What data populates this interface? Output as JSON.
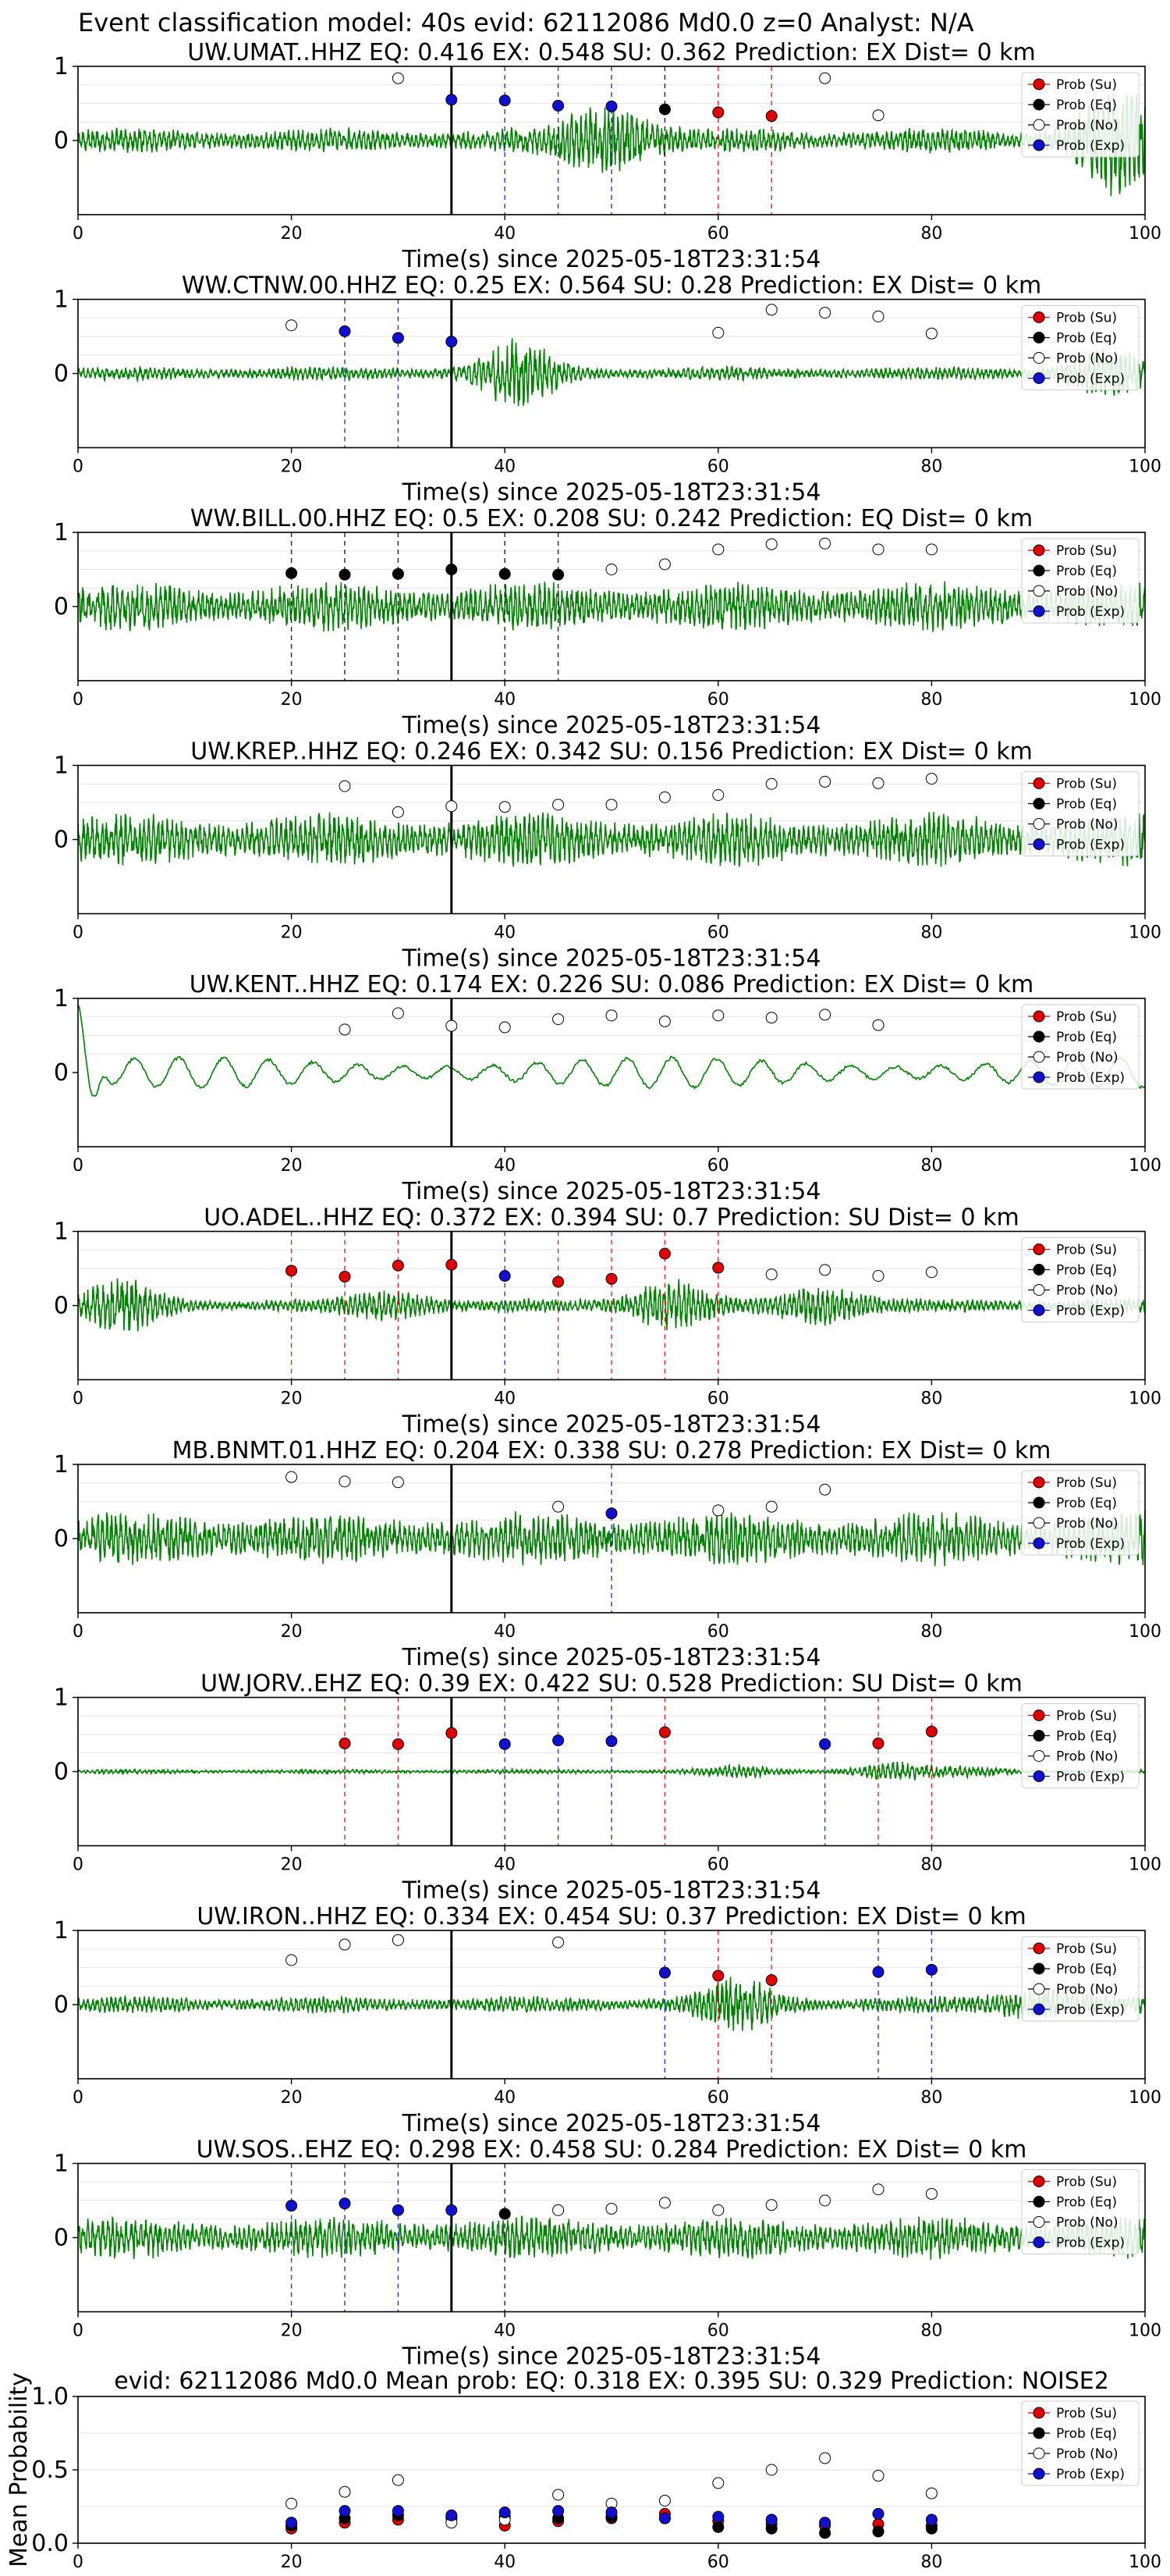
{
  "suptitle": "Event classification model: 40s evid: 62112086 Md0.0 z=0 Analyst: N/A",
  "xlabel": "Time(s) since 2025-05-18T23:31:54",
  "legend": [
    "Prob (Su)",
    "Prob (Eq)",
    "Prob (No)",
    "Prob (Exp)"
  ],
  "colors": {
    "su": "#e00000",
    "eq": "#000000",
    "no": "#ffffff",
    "exp": "#1010d0",
    "wave": "#008000",
    "pick": "#000000"
  },
  "chart_data": [
    {
      "type": "line",
      "title": "UW.UMAT..HHZ   EQ: 0.416  EX: 0.548  SU: 0.362   Prediction: EX    Dist= 0 km",
      "xlim": [
        0,
        100
      ],
      "ylim": [
        -1,
        1
      ],
      "yticks": [
        0,
        1
      ],
      "xticks": [
        0,
        20,
        40,
        60,
        80,
        100
      ],
      "pick_time": 35,
      "wave": {
        "amp": 0.18,
        "style": "noisy",
        "events": [
          {
            "t": 50,
            "g": 0.9
          },
          {
            "t": 97,
            "g": 0.9
          }
        ]
      },
      "points": [
        {
          "x": 30,
          "y": 0.84,
          "cls": "no"
        },
        {
          "x": 35,
          "y": 0.55,
          "cls": "exp"
        },
        {
          "x": 40,
          "y": 0.54,
          "cls": "exp"
        },
        {
          "x": 45,
          "y": 0.47,
          "cls": "exp"
        },
        {
          "x": 50,
          "y": 0.46,
          "cls": "exp"
        },
        {
          "x": 55,
          "y": 0.42,
          "cls": "eq"
        },
        {
          "x": 60,
          "y": 0.38,
          "cls": "su"
        },
        {
          "x": 65,
          "y": 0.33,
          "cls": "su"
        },
        {
          "x": 70,
          "y": 0.84,
          "cls": "no"
        },
        {
          "x": 75,
          "y": 0.34,
          "cls": "no"
        }
      ]
    },
    {
      "type": "line",
      "title": "WW.CTNW.00.HHZ   EQ: 0.25  EX: 0.564  SU: 0.28   Prediction: EX    Dist= 0 km",
      "xlim": [
        0,
        100
      ],
      "ylim": [
        -1,
        1
      ],
      "yticks": [
        0,
        1
      ],
      "xticks": [
        0,
        20,
        40,
        60,
        80,
        100
      ],
      "pick_time": 35,
      "wave": {
        "amp": 0.1,
        "style": "noisy",
        "events": [
          {
            "t": 41,
            "g": 1.0
          },
          {
            "t": 96,
            "g": 0.7
          }
        ]
      },
      "points": [
        {
          "x": 20,
          "y": 0.65,
          "cls": "no"
        },
        {
          "x": 25,
          "y": 0.57,
          "cls": "exp"
        },
        {
          "x": 30,
          "y": 0.48,
          "cls": "exp"
        },
        {
          "x": 35,
          "y": 0.43,
          "cls": "exp"
        },
        {
          "x": 60,
          "y": 0.55,
          "cls": "no"
        },
        {
          "x": 65,
          "y": 0.86,
          "cls": "no"
        },
        {
          "x": 70,
          "y": 0.82,
          "cls": "no"
        },
        {
          "x": 75,
          "y": 0.77,
          "cls": "no"
        },
        {
          "x": 80,
          "y": 0.54,
          "cls": "no"
        }
      ]
    },
    {
      "type": "line",
      "title": "WW.BILL.00.HHZ   EQ: 0.5  EX: 0.208  SU: 0.242   Prediction: EQ    Dist= 0 km",
      "xlim": [
        0,
        100
      ],
      "ylim": [
        -1,
        1
      ],
      "yticks": [
        0,
        1
      ],
      "xticks": [
        0,
        20,
        40,
        60,
        80,
        100
      ],
      "pick_time": 35,
      "wave": {
        "amp": 0.35,
        "style": "noisy",
        "events": []
      },
      "points": [
        {
          "x": 20,
          "y": 0.45,
          "cls": "eq"
        },
        {
          "x": 25,
          "y": 0.43,
          "cls": "eq"
        },
        {
          "x": 30,
          "y": 0.44,
          "cls": "eq"
        },
        {
          "x": 35,
          "y": 0.5,
          "cls": "eq"
        },
        {
          "x": 40,
          "y": 0.44,
          "cls": "eq"
        },
        {
          "x": 45,
          "y": 0.43,
          "cls": "eq"
        },
        {
          "x": 50,
          "y": 0.5,
          "cls": "no"
        },
        {
          "x": 55,
          "y": 0.57,
          "cls": "no"
        },
        {
          "x": 60,
          "y": 0.77,
          "cls": "no"
        },
        {
          "x": 65,
          "y": 0.84,
          "cls": "no"
        },
        {
          "x": 70,
          "y": 0.85,
          "cls": "no"
        },
        {
          "x": 75,
          "y": 0.77,
          "cls": "no"
        },
        {
          "x": 80,
          "y": 0.77,
          "cls": "no"
        }
      ]
    },
    {
      "type": "line",
      "title": "UW.KREP..HHZ   EQ: 0.246  EX: 0.342  SU: 0.156   Prediction: EX    Dist= 0 km",
      "xlim": [
        0,
        100
      ],
      "ylim": [
        -1,
        1
      ],
      "yticks": [
        0,
        1
      ],
      "xticks": [
        0,
        20,
        40,
        60,
        80,
        100
      ],
      "pick_time": 35,
      "wave": {
        "amp": 0.38,
        "style": "noisy",
        "events": []
      },
      "points": [
        {
          "x": 25,
          "y": 0.72,
          "cls": "no"
        },
        {
          "x": 30,
          "y": 0.37,
          "cls": "no"
        },
        {
          "x": 35,
          "y": 0.45,
          "cls": "no"
        },
        {
          "x": 40,
          "y": 0.44,
          "cls": "no"
        },
        {
          "x": 45,
          "y": 0.47,
          "cls": "no"
        },
        {
          "x": 50,
          "y": 0.47,
          "cls": "no"
        },
        {
          "x": 55,
          "y": 0.57,
          "cls": "no"
        },
        {
          "x": 60,
          "y": 0.6,
          "cls": "no"
        },
        {
          "x": 65,
          "y": 0.75,
          "cls": "no"
        },
        {
          "x": 70,
          "y": 0.78,
          "cls": "no"
        },
        {
          "x": 75,
          "y": 0.76,
          "cls": "no"
        },
        {
          "x": 80,
          "y": 0.82,
          "cls": "no"
        }
      ]
    },
    {
      "type": "line",
      "title": "UW.KENT..HHZ   EQ: 0.174  EX: 0.226  SU: 0.086   Prediction: EX    Dist= 0 km",
      "xlim": [
        0,
        100
      ],
      "ylim": [
        -1,
        1
      ],
      "yticks": [
        0,
        1
      ],
      "xticks": [
        0,
        20,
        40,
        60,
        80,
        100
      ],
      "pick_time": 35,
      "wave": {
        "amp": 0.2,
        "style": "smooth",
        "events": [
          {
            "t": 1,
            "g": 1.4
          }
        ]
      },
      "points": [
        {
          "x": 25,
          "y": 0.58,
          "cls": "no"
        },
        {
          "x": 30,
          "y": 0.8,
          "cls": "no"
        },
        {
          "x": 35,
          "y": 0.63,
          "cls": "no"
        },
        {
          "x": 40,
          "y": 0.61,
          "cls": "no"
        },
        {
          "x": 45,
          "y": 0.72,
          "cls": "no"
        },
        {
          "x": 50,
          "y": 0.77,
          "cls": "no"
        },
        {
          "x": 55,
          "y": 0.69,
          "cls": "no"
        },
        {
          "x": 60,
          "y": 0.77,
          "cls": "no"
        },
        {
          "x": 65,
          "y": 0.74,
          "cls": "no"
        },
        {
          "x": 70,
          "y": 0.78,
          "cls": "no"
        },
        {
          "x": 75,
          "y": 0.64,
          "cls": "no"
        }
      ]
    },
    {
      "type": "line",
      "title": "UO.ADEL..HHZ   EQ: 0.372  EX: 0.394  SU: 0.7   Prediction: SU    Dist= 0 km",
      "xlim": [
        0,
        100
      ],
      "ylim": [
        -1,
        1
      ],
      "yticks": [
        0,
        1
      ],
      "xticks": [
        0,
        20,
        40,
        60,
        80,
        100
      ],
      "pick_time": 35,
      "wave": {
        "amp": 0.1,
        "style": "noisy",
        "events": [
          {
            "t": 4,
            "g": 0.8
          },
          {
            "t": 55,
            "g": 1.0
          },
          {
            "t": 70,
            "g": 0.9
          },
          {
            "t": 30,
            "g": 0.5
          }
        ]
      },
      "points": [
        {
          "x": 20,
          "y": 0.47,
          "cls": "su"
        },
        {
          "x": 25,
          "y": 0.39,
          "cls": "su"
        },
        {
          "x": 30,
          "y": 0.54,
          "cls": "su"
        },
        {
          "x": 35,
          "y": 0.55,
          "cls": "su"
        },
        {
          "x": 40,
          "y": 0.4,
          "cls": "exp"
        },
        {
          "x": 45,
          "y": 0.32,
          "cls": "su"
        },
        {
          "x": 50,
          "y": 0.36,
          "cls": "su"
        },
        {
          "x": 55,
          "y": 0.7,
          "cls": "su"
        },
        {
          "x": 60,
          "y": 0.51,
          "cls": "su"
        },
        {
          "x": 65,
          "y": 0.42,
          "cls": "no"
        },
        {
          "x": 70,
          "y": 0.48,
          "cls": "no"
        },
        {
          "x": 75,
          "y": 0.4,
          "cls": "no"
        },
        {
          "x": 80,
          "y": 0.45,
          "cls": "no"
        }
      ]
    },
    {
      "type": "line",
      "title": "MB.BNMT.01.HHZ   EQ: 0.204  EX: 0.338  SU: 0.278   Prediction: EX    Dist= 0 km",
      "xlim": [
        0,
        100
      ],
      "ylim": [
        -1,
        1
      ],
      "yticks": [
        0,
        1
      ],
      "xticks": [
        0,
        20,
        40,
        60,
        80,
        100
      ],
      "pick_time": 35,
      "wave": {
        "amp": 0.38,
        "style": "noisy",
        "events": []
      },
      "points": [
        {
          "x": 20,
          "y": 0.83,
          "cls": "no"
        },
        {
          "x": 25,
          "y": 0.77,
          "cls": "no"
        },
        {
          "x": 30,
          "y": 0.76,
          "cls": "no"
        },
        {
          "x": 45,
          "y": 0.43,
          "cls": "no"
        },
        {
          "x": 50,
          "y": 0.34,
          "cls": "exp"
        },
        {
          "x": 60,
          "y": 0.38,
          "cls": "no"
        },
        {
          "x": 65,
          "y": 0.43,
          "cls": "no"
        },
        {
          "x": 70,
          "y": 0.66,
          "cls": "no"
        }
      ]
    },
    {
      "type": "line",
      "title": "UW.JORV..EHZ   EQ: 0.39  EX: 0.422  SU: 0.528   Prediction: SU    Dist= 0 km",
      "xlim": [
        0,
        100
      ],
      "ylim": [
        -1,
        1
      ],
      "yticks": [
        0,
        1
      ],
      "xticks": [
        0,
        20,
        40,
        60,
        80,
        100
      ],
      "pick_time": 35,
      "wave": {
        "amp": 0.03,
        "style": "noisy",
        "events": [
          {
            "t": 62,
            "g": 0.5
          },
          {
            "t": 76,
            "g": 1.1
          },
          {
            "t": 84,
            "g": 0.5
          }
        ]
      },
      "points": [
        {
          "x": 25,
          "y": 0.38,
          "cls": "su"
        },
        {
          "x": 30,
          "y": 0.37,
          "cls": "su"
        },
        {
          "x": 35,
          "y": 0.52,
          "cls": "su"
        },
        {
          "x": 40,
          "y": 0.37,
          "cls": "exp"
        },
        {
          "x": 45,
          "y": 0.42,
          "cls": "exp"
        },
        {
          "x": 50,
          "y": 0.41,
          "cls": "exp"
        },
        {
          "x": 55,
          "y": 0.53,
          "cls": "su"
        },
        {
          "x": 70,
          "y": 0.37,
          "cls": "exp"
        },
        {
          "x": 75,
          "y": 0.38,
          "cls": "su"
        },
        {
          "x": 80,
          "y": 0.54,
          "cls": "su"
        }
      ]
    },
    {
      "type": "line",
      "title": "UW.IRON..HHZ   EQ: 0.334  EX: 0.454  SU: 0.37   Prediction: EX    Dist= 0 km",
      "xlim": [
        0,
        100
      ],
      "ylim": [
        -1,
        1
      ],
      "yticks": [
        0,
        1
      ],
      "xticks": [
        0,
        20,
        40,
        60,
        80,
        100
      ],
      "pick_time": 35,
      "wave": {
        "amp": 0.12,
        "style": "noisy",
        "events": [
          {
            "t": 62,
            "g": 0.6
          },
          {
            "t": 90,
            "g": 0.5
          }
        ]
      },
      "points": [
        {
          "x": 20,
          "y": 0.6,
          "cls": "no"
        },
        {
          "x": 25,
          "y": 0.81,
          "cls": "no"
        },
        {
          "x": 30,
          "y": 0.87,
          "cls": "no"
        },
        {
          "x": 45,
          "y": 0.84,
          "cls": "no"
        },
        {
          "x": 55,
          "y": 0.43,
          "cls": "exp"
        },
        {
          "x": 60,
          "y": 0.39,
          "cls": "su"
        },
        {
          "x": 65,
          "y": 0.33,
          "cls": "su"
        },
        {
          "x": 75,
          "y": 0.44,
          "cls": "exp"
        },
        {
          "x": 80,
          "y": 0.47,
          "cls": "exp"
        }
      ]
    },
    {
      "type": "line",
      "title": "UW.SOS..EHZ   EQ: 0.298  EX: 0.458  SU: 0.284   Prediction: EX    Dist= 0 km",
      "xlim": [
        0,
        100
      ],
      "ylim": [
        -1,
        1
      ],
      "yticks": [
        0,
        1
      ],
      "xticks": [
        0,
        20,
        40,
        60,
        80,
        100
      ],
      "pick_time": 35,
      "wave": {
        "amp": 0.3,
        "style": "noisy",
        "events": []
      },
      "points": [
        {
          "x": 20,
          "y": 0.43,
          "cls": "exp"
        },
        {
          "x": 25,
          "y": 0.46,
          "cls": "exp"
        },
        {
          "x": 30,
          "y": 0.37,
          "cls": "exp"
        },
        {
          "x": 35,
          "y": 0.37,
          "cls": "exp"
        },
        {
          "x": 40,
          "y": 0.32,
          "cls": "eq"
        },
        {
          "x": 45,
          "y": 0.37,
          "cls": "no"
        },
        {
          "x": 50,
          "y": 0.39,
          "cls": "no"
        },
        {
          "x": 55,
          "y": 0.47,
          "cls": "no"
        },
        {
          "x": 60,
          "y": 0.37,
          "cls": "no"
        },
        {
          "x": 65,
          "y": 0.44,
          "cls": "no"
        },
        {
          "x": 70,
          "y": 0.5,
          "cls": "no"
        },
        {
          "x": 75,
          "y": 0.65,
          "cls": "no"
        },
        {
          "x": 80,
          "y": 0.59,
          "cls": "no"
        }
      ]
    },
    {
      "type": "scatter",
      "title": "evid: 62112086  Md0.0   Mean prob:   EQ: 0.318  EX: 0.395  SU: 0.329   Prediction: NOISE2",
      "ylabel": "Mean Probability",
      "xlim": [
        0,
        100
      ],
      "ylim": [
        0,
        1
      ],
      "yticks": [
        0.0,
        0.5,
        1.0
      ],
      "ytick_labels": [
        "0.0",
        "0.5",
        "1.0"
      ],
      "xticks": [
        0,
        20,
        40,
        60,
        80,
        100
      ],
      "x": [
        20,
        25,
        30,
        35,
        40,
        45,
        50,
        55,
        60,
        65,
        70,
        75,
        80
      ],
      "series": [
        {
          "name": "Prob (Su)",
          "values": [
            0.1,
            0.14,
            0.16,
            0.17,
            0.12,
            0.15,
            0.17,
            0.2,
            0.15,
            0.13,
            0.12,
            0.13,
            0.12
          ]
        },
        {
          "name": "Prob (Eq)",
          "values": [
            0.12,
            0.17,
            0.19,
            0.18,
            0.18,
            0.17,
            0.18,
            0.17,
            0.11,
            0.1,
            0.07,
            0.08,
            0.1
          ]
        },
        {
          "name": "Prob (No)",
          "values": [
            0.27,
            0.35,
            0.43,
            0.14,
            0.16,
            0.33,
            0.27,
            0.29,
            0.41,
            0.5,
            0.58,
            0.46,
            0.34
          ]
        },
        {
          "name": "Prob (Exp)",
          "values": [
            0.14,
            0.22,
            0.22,
            0.19,
            0.21,
            0.22,
            0.21,
            0.17,
            0.18,
            0.16,
            0.14,
            0.2,
            0.16
          ]
        }
      ]
    }
  ]
}
